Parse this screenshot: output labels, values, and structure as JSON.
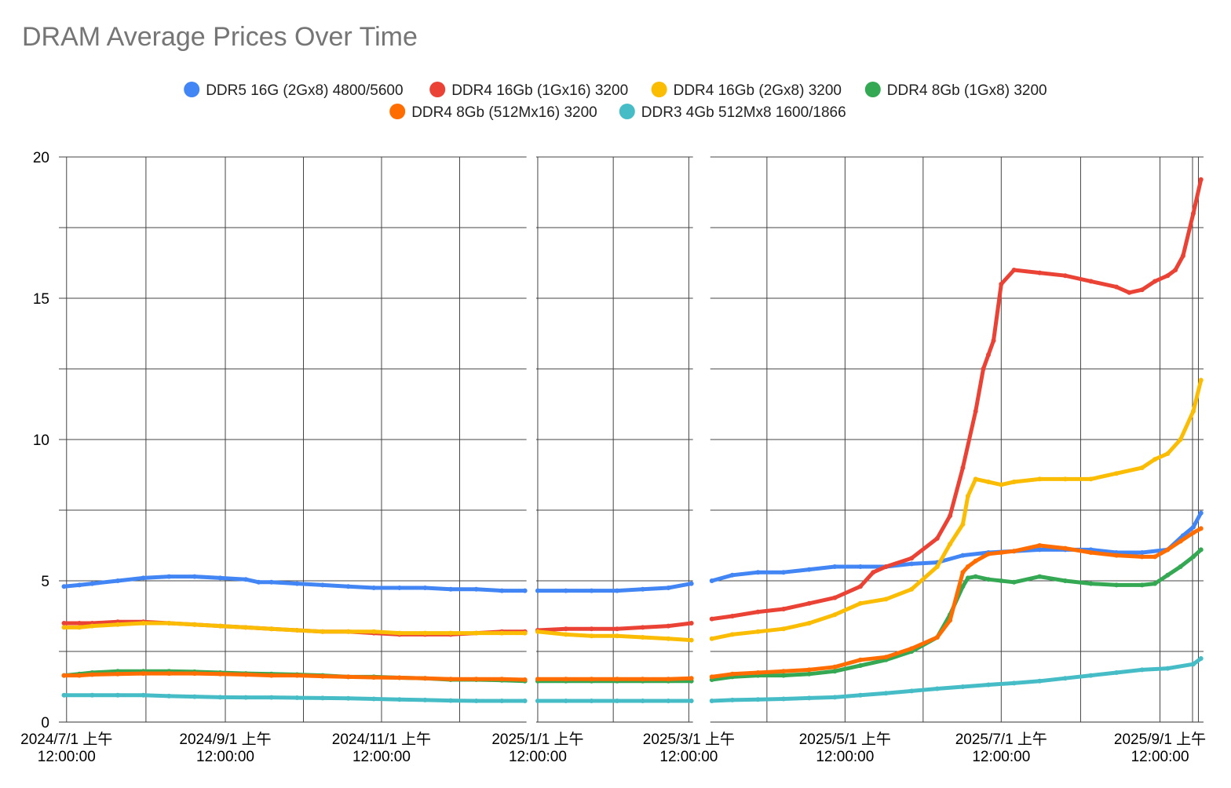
{
  "chart_data": {
    "type": "line",
    "title": "DRAM Average Prices Over Time",
    "xlabel": "",
    "ylabel": "",
    "ylim": [
      0,
      20
    ],
    "yticks": [
      0,
      5,
      10,
      15,
      20
    ],
    "grid": true,
    "legend_position": "top",
    "xlim_days": [
      -3,
      444
    ],
    "x_unit": "days since 2024/7/1",
    "x_tick_labels": [
      {
        "day": 0,
        "line1": "2024/7/1 上午",
        "line2": "12:00:00"
      },
      {
        "day": 62,
        "line1": "2024/9/1 上午",
        "line2": "12:00:00"
      },
      {
        "day": 123,
        "line1": "2024/11/1 上午",
        "line2": "12:00:00"
      },
      {
        "day": 184,
        "line1": "2025/1/1 上午",
        "line2": "12:00:00"
      },
      {
        "day": 243,
        "line1": "2025/3/1 上午",
        "line2": "12:00:00"
      },
      {
        "day": 304,
        "line1": "2025/5/1 上午",
        "line2": "12:00:00"
      },
      {
        "day": 365,
        "line1": "2025/7/1 上午",
        "line2": "12:00:00"
      },
      {
        "day": 427,
        "line1": "2025/9/1 上午",
        "line2": "12:00:00"
      }
    ],
    "gaps_days": [
      [
        179,
        184
      ],
      [
        244,
        252
      ]
    ],
    "series": [
      {
        "name": "DDR5 16G (2Gx8) 4800/5600",
        "color": "#4285f4",
        "x": [
          -1,
          5,
          10,
          20,
          30,
          40,
          50,
          60,
          70,
          75,
          80,
          90,
          100,
          110,
          120,
          130,
          140,
          150,
          160,
          170,
          179,
          184,
          195,
          205,
          215,
          225,
          235,
          244,
          252,
          260,
          270,
          280,
          290,
          300,
          310,
          320,
          330,
          340,
          350,
          360,
          370,
          380,
          390,
          400,
          410,
          420,
          430,
          436,
          440,
          443
        ],
        "values": [
          4.8,
          4.85,
          4.9,
          5.0,
          5.1,
          5.15,
          5.15,
          5.1,
          5.05,
          4.95,
          4.95,
          4.9,
          4.85,
          4.8,
          4.75,
          4.75,
          4.75,
          4.7,
          4.7,
          4.65,
          4.65,
          4.65,
          4.65,
          4.65,
          4.65,
          4.7,
          4.75,
          4.9,
          5.0,
          5.2,
          5.3,
          5.3,
          5.4,
          5.5,
          5.5,
          5.5,
          5.6,
          5.65,
          5.9,
          6.0,
          6.05,
          6.1,
          6.1,
          6.1,
          6.0,
          6.0,
          6.1,
          6.6,
          6.9,
          7.4
        ]
      },
      {
        "name": "DDR4 16Gb (1Gx16) 3200",
        "color": "#ea4335",
        "x": [
          -1,
          5,
          10,
          20,
          30,
          40,
          50,
          60,
          70,
          80,
          90,
          100,
          110,
          120,
          130,
          140,
          150,
          160,
          170,
          179,
          184,
          195,
          205,
          215,
          225,
          235,
          244,
          252,
          260,
          270,
          280,
          290,
          300,
          310,
          315,
          320,
          330,
          340,
          345,
          350,
          355,
          358,
          360,
          362,
          365,
          370,
          380,
          390,
          400,
          410,
          415,
          420,
          425,
          430,
          433,
          436,
          440,
          443
        ],
        "values": [
          3.5,
          3.5,
          3.5,
          3.55,
          3.55,
          3.5,
          3.45,
          3.4,
          3.35,
          3.3,
          3.25,
          3.2,
          3.2,
          3.15,
          3.1,
          3.1,
          3.1,
          3.15,
          3.2,
          3.2,
          3.25,
          3.3,
          3.3,
          3.3,
          3.35,
          3.4,
          3.5,
          3.65,
          3.75,
          3.9,
          4.0,
          4.2,
          4.4,
          4.8,
          5.3,
          5.5,
          5.8,
          6.5,
          7.3,
          9.0,
          11.0,
          12.5,
          13.0,
          13.5,
          15.5,
          16.0,
          15.9,
          15.8,
          15.6,
          15.4,
          15.2,
          15.3,
          15.6,
          15.8,
          16.0,
          16.5,
          18.0,
          19.2
        ]
      },
      {
        "name": "DDR4 16Gb (2Gx8) 3200",
        "color": "#fbbc04",
        "x": [
          -1,
          5,
          10,
          20,
          30,
          40,
          50,
          60,
          70,
          80,
          90,
          100,
          110,
          120,
          130,
          140,
          150,
          160,
          170,
          179,
          184,
          195,
          205,
          215,
          225,
          235,
          244,
          252,
          260,
          270,
          280,
          290,
          300,
          310,
          320,
          330,
          340,
          345,
          350,
          352,
          355,
          360,
          365,
          370,
          380,
          390,
          400,
          410,
          420,
          425,
          430,
          435,
          440,
          443
        ],
        "values": [
          3.35,
          3.35,
          3.4,
          3.45,
          3.5,
          3.5,
          3.45,
          3.4,
          3.35,
          3.3,
          3.25,
          3.2,
          3.2,
          3.2,
          3.15,
          3.15,
          3.15,
          3.15,
          3.15,
          3.15,
          3.2,
          3.1,
          3.05,
          3.05,
          3.0,
          2.95,
          2.9,
          2.95,
          3.1,
          3.2,
          3.3,
          3.5,
          3.8,
          4.2,
          4.35,
          4.7,
          5.5,
          6.3,
          7.0,
          8.0,
          8.6,
          8.5,
          8.4,
          8.5,
          8.6,
          8.6,
          8.6,
          8.8,
          9.0,
          9.3,
          9.5,
          10.0,
          11.0,
          12.1
        ]
      },
      {
        "name": "DDR4 8Gb (1Gx8) 3200",
        "color": "#34a853",
        "x": [
          -1,
          5,
          10,
          20,
          30,
          40,
          50,
          60,
          70,
          80,
          90,
          100,
          110,
          120,
          130,
          140,
          150,
          160,
          170,
          179,
          184,
          195,
          205,
          215,
          225,
          235,
          244,
          252,
          260,
          270,
          280,
          290,
          300,
          310,
          320,
          330,
          340,
          345,
          350,
          352,
          355,
          360,
          365,
          370,
          380,
          390,
          400,
          410,
          420,
          425,
          430,
          435,
          440,
          443
        ],
        "values": [
          1.65,
          1.7,
          1.75,
          1.8,
          1.8,
          1.8,
          1.78,
          1.75,
          1.72,
          1.7,
          1.68,
          1.65,
          1.6,
          1.6,
          1.57,
          1.55,
          1.5,
          1.5,
          1.48,
          1.45,
          1.45,
          1.45,
          1.45,
          1.45,
          1.45,
          1.45,
          1.45,
          1.5,
          1.6,
          1.65,
          1.65,
          1.7,
          1.8,
          2.0,
          2.2,
          2.5,
          3.0,
          3.8,
          4.8,
          5.1,
          5.15,
          5.05,
          5.0,
          4.95,
          5.15,
          5.0,
          4.9,
          4.85,
          4.85,
          4.9,
          5.2,
          5.5,
          5.85,
          6.1
        ]
      },
      {
        "name": "DDR4 8Gb (512Mx16) 3200",
        "color": "#ff6d01",
        "x": [
          -1,
          5,
          10,
          20,
          30,
          40,
          50,
          60,
          70,
          80,
          90,
          100,
          110,
          120,
          130,
          140,
          150,
          160,
          170,
          179,
          184,
          195,
          205,
          215,
          225,
          235,
          244,
          252,
          260,
          270,
          280,
          290,
          300,
          310,
          320,
          330,
          340,
          345,
          350,
          352,
          355,
          360,
          365,
          370,
          380,
          390,
          400,
          410,
          420,
          425,
          430,
          435,
          440,
          443
        ],
        "values": [
          1.65,
          1.65,
          1.68,
          1.7,
          1.72,
          1.72,
          1.72,
          1.7,
          1.68,
          1.65,
          1.65,
          1.62,
          1.6,
          1.58,
          1.57,
          1.55,
          1.52,
          1.52,
          1.52,
          1.5,
          1.52,
          1.52,
          1.52,
          1.52,
          1.52,
          1.52,
          1.55,
          1.6,
          1.7,
          1.75,
          1.8,
          1.85,
          1.95,
          2.2,
          2.3,
          2.6,
          3.0,
          3.6,
          5.3,
          5.5,
          5.7,
          5.95,
          6.0,
          6.05,
          6.25,
          6.15,
          6.0,
          5.9,
          5.85,
          5.85,
          6.1,
          6.4,
          6.7,
          6.85
        ]
      },
      {
        "name": "DDR3 4Gb 512Mx8 1600/1866",
        "color": "#46bdc6",
        "x": [
          -1,
          10,
          20,
          30,
          40,
          50,
          60,
          70,
          80,
          90,
          100,
          110,
          120,
          130,
          140,
          150,
          160,
          170,
          179,
          184,
          195,
          205,
          215,
          225,
          235,
          244,
          252,
          260,
          270,
          280,
          290,
          300,
          310,
          320,
          330,
          340,
          350,
          360,
          370,
          380,
          390,
          400,
          410,
          420,
          430,
          440,
          443
        ],
        "values": [
          0.95,
          0.95,
          0.95,
          0.95,
          0.92,
          0.9,
          0.88,
          0.87,
          0.87,
          0.86,
          0.85,
          0.84,
          0.82,
          0.8,
          0.78,
          0.76,
          0.75,
          0.75,
          0.75,
          0.75,
          0.75,
          0.75,
          0.75,
          0.75,
          0.75,
          0.75,
          0.75,
          0.78,
          0.8,
          0.82,
          0.85,
          0.88,
          0.95,
          1.02,
          1.1,
          1.18,
          1.25,
          1.32,
          1.38,
          1.45,
          1.55,
          1.65,
          1.75,
          1.85,
          1.9,
          2.05,
          2.25
        ]
      }
    ]
  }
}
